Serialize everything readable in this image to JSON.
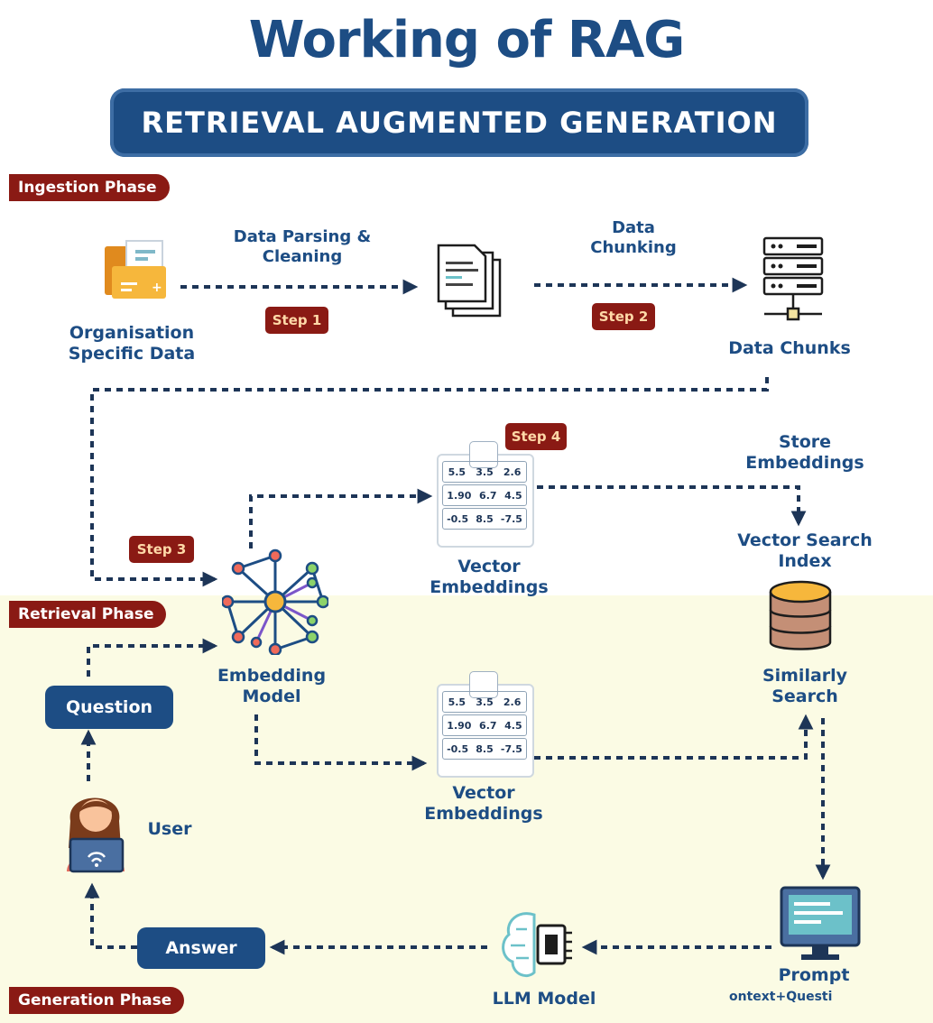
{
  "header": {
    "title": "Working of RAG",
    "subtitle": "RETRIEVAL AUGMENTED GENERATION"
  },
  "phases": {
    "ingestion": "Ingestion Phase",
    "retrieval": "Retrieval Phase",
    "generation": "Generation Phase"
  },
  "steps": {
    "step1": "Step 1",
    "step2": "Step 2",
    "step3": "Step 3",
    "step4": "Step 4"
  },
  "nodes": {
    "org_data": "Organisation Specific Data",
    "data_chunks": "Data Chunks",
    "vector_embeddings_top": "Vector Embeddings",
    "vector_embeddings_bottom": "Vector Embeddings",
    "embedding_model": "Embedding Model",
    "vector_search_index": "Vector Search Index",
    "similarly_search": "Similarly Search",
    "user": "User",
    "llm_model": "LLM Model",
    "prompt": "Prompt",
    "prompt_sub": "ontext+Questi"
  },
  "edges": {
    "parsing": "Data Parsing & Cleaning",
    "chunking": "Data Chunking",
    "store": "Store Embeddings"
  },
  "pills": {
    "question": "Question",
    "answer": "Answer"
  },
  "vector_card": {
    "rows": [
      [
        "5.5",
        "3.5",
        "2.6"
      ],
      [
        "1.90",
        "6.7",
        "4.5"
      ],
      [
        "-0.5",
        "8.5",
        "-7.5"
      ]
    ]
  },
  "colors": {
    "primary": "#1d4d84",
    "step_bg": "#8a1a14",
    "step_text": "#ffd9a8",
    "connector": "#1d3557",
    "band": "#fbfbe4"
  },
  "icons": {
    "org_data": "folder-icon",
    "documents": "documents-icon",
    "chunks": "server-icon",
    "embedding": "neural-network-icon",
    "vector_index": "database-icon",
    "user": "user-laptop-icon",
    "llm": "brain-chip-icon",
    "prompt": "monitor-icon"
  }
}
